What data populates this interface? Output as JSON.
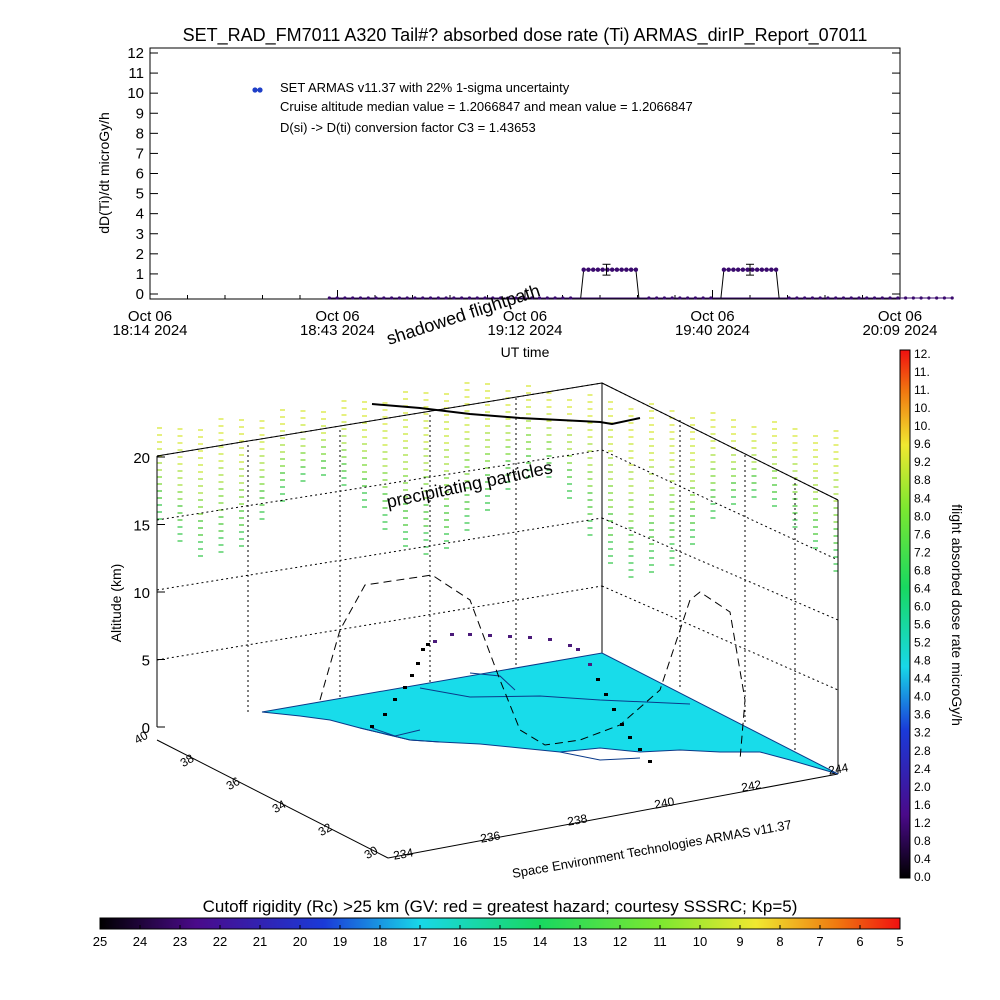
{
  "title": "SET_RAD_FM7011  A320 Tail#? absorbed dose rate (Ti) ARMAS_dirIP_Report_07011",
  "colors": {
    "series_marker": "#3a0a6e",
    "legend_marker": "#1f3fc8",
    "surface_cyan": "#18dcea",
    "precip_green": "#4cc83a",
    "precip_yellow": "#d8e83a"
  },
  "chart_data": [
    {
      "type": "line",
      "title": "SET_RAD_FM7011  A320 Tail#? absorbed dose rate (Ti) ARMAS_dirIP_Report_07011",
      "xlabel": "UT time",
      "ylabel": "dD(Ti)/dt microGy/h",
      "ylim": [
        0,
        12
      ],
      "yticks": [
        "0",
        "1",
        "2",
        "3",
        "4",
        "5",
        "6",
        "7",
        "8",
        "9",
        "10",
        "11",
        "12"
      ],
      "xticks": [
        {
          "line1": "Oct 06",
          "line2": "18:14 2024"
        },
        {
          "line1": "Oct 06",
          "line2": "18:43 2024"
        },
        {
          "line1": "Oct 06",
          "line2": "19:12 2024"
        },
        {
          "line1": "Oct 06",
          "line2": "19:40 2024"
        },
        {
          "line1": "Oct 06",
          "line2": "20:09 2024"
        }
      ],
      "xlim_minutes": [
        0,
        115
      ],
      "legend": {
        "entry": "SET ARMAS v11.37 with 22% 1-sigma uncertainty",
        "note1": "Cruise altitude median value = 1.2066847 and mean value = 1.2066847",
        "note2": "D(si) -> D(ti) conversion factor C3 = 1.43653",
        "placement": "top-left"
      },
      "series": [
        {
          "segments": [
            {
              "x_start": 27.5,
              "x_end": 83.5,
              "y": 0.02,
              "count": 70
            }
          ],
          "plateaus": [
            {
              "x_start": 66.5,
              "x_end": 74.5,
              "y": 1.21,
              "count": 12,
              "errbar_x": 70.0,
              "err": 0.27
            },
            {
              "x_start": 88.0,
              "x_end": 96.0,
              "y": 1.21,
              "count": 12,
              "errbar_x": 92.0,
              "err": 0.27
            }
          ],
          "zero_runs": [
            {
              "x_start": 27.5,
              "x_end": 64.5
            },
            {
              "x_start": 76.5,
              "x_end": 86.0
            },
            {
              "x_start": 98.0,
              "x_end": 123.0
            }
          ]
        }
      ]
    },
    {
      "type": "3d-surface",
      "ylabel": "Altitude (km)",
      "zticks": [
        "0",
        "5",
        "10",
        "15",
        "20"
      ],
      "lat_ticks": [
        "30",
        "32",
        "34",
        "36",
        "38",
        "40"
      ],
      "lon_ticks": [
        "234",
        "236",
        "238",
        "240",
        "242",
        "244"
      ],
      "annotations": [
        "shadowed flightpath",
        "precipitating particles"
      ],
      "credit": "Space Environment Technologies ARMAS v11.37",
      "colorbar_right": {
        "label": "flight absorbed dose rate microGy/h",
        "ticks": [
          "12.",
          "11.",
          "11.",
          "10.",
          "10.",
          "9.6",
          "9.2",
          "8.8",
          "8.4",
          "8.0",
          "7.6",
          "7.2",
          "6.8",
          "6.4",
          "6.0",
          "5.6",
          "5.2",
          "4.8",
          "4.4",
          "4.0",
          "3.6",
          "3.2",
          "2.8",
          "2.4",
          "2.0",
          "1.6",
          "1.2",
          "0.8",
          "0.4",
          "0.0"
        ]
      },
      "colorbar_bottom": {
        "label": "Cutoff rigidity (Rc) >25 km (GV: red = greatest hazard; courtesy SSSRC; Kp=5)",
        "ticks": [
          "25",
          "24",
          "23",
          "22",
          "21",
          "20",
          "19",
          "18",
          "17",
          "16",
          "15",
          "14",
          "13",
          "12",
          "11",
          "10",
          "9",
          "8",
          "7",
          "6",
          "5"
        ]
      }
    }
  ]
}
